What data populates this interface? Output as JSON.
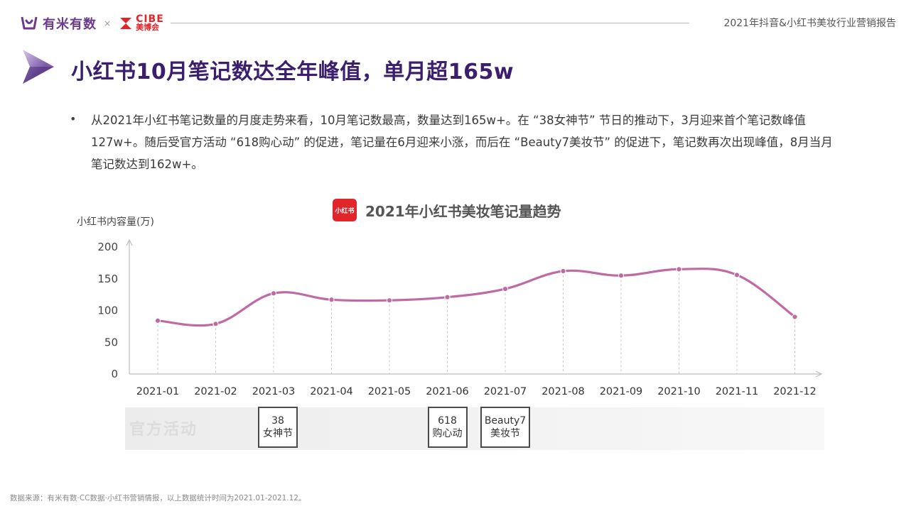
{
  "header": {
    "brand": "有米有数",
    "times": "×",
    "cibe_top": "CIBE",
    "cibe_bottom": "美博会",
    "report_title": "2021年抖音&小红书美妆行业营销报告"
  },
  "title": "小红书10月笔记数达全年峰值，单月超165w",
  "body": {
    "bullet": "•",
    "text": "从2021年小红书笔记数量的月度走势来看，10月笔记数最高，数量达到165w+。在 “38女神节” 节日的推动下，3月迎来首个笔记数峰值127w+。随后受官方活动 “618购心动” 的促进，笔记量在6月迎来小涨，而后在 “Beauty7美妆节” 的促进下，笔记数再次出现峰值，8月当月笔记数达到162w+。"
  },
  "chart_logo_text": "小红书",
  "chart_data": {
    "type": "line",
    "title": "2021年小红书美妆笔记量趋势",
    "ylabel": "小红书内容量(万)",
    "xlabel": "",
    "ylim": [
      0,
      200
    ],
    "yticks": [
      "0",
      "50",
      "100",
      "150",
      "200"
    ],
    "categories": [
      "2021-01",
      "2021-02",
      "2021-03",
      "2021-04",
      "2021-05",
      "2021-06",
      "2021-07",
      "2021-08",
      "2021-09",
      "2021-10",
      "2021-11",
      "2021-12"
    ],
    "values": [
      84,
      79,
      127,
      117,
      116,
      121,
      134,
      162,
      155,
      165,
      156,
      90
    ],
    "line_color": "#c06aa4",
    "grid": false
  },
  "events": {
    "band_label": "官方活动",
    "items": [
      {
        "line1": "38",
        "line2": "女神节",
        "month": "2021-03"
      },
      {
        "line1": "618",
        "line2": "购心动",
        "month": "2021-06"
      },
      {
        "line1": "Beauty7",
        "line2": "美妆节",
        "month": "2021-07"
      }
    ]
  },
  "footer": {
    "source": "数据来源：有米有数·CC数据·小红书营销情报，以上数据统计时间为2021.01-2021.12。"
  }
}
